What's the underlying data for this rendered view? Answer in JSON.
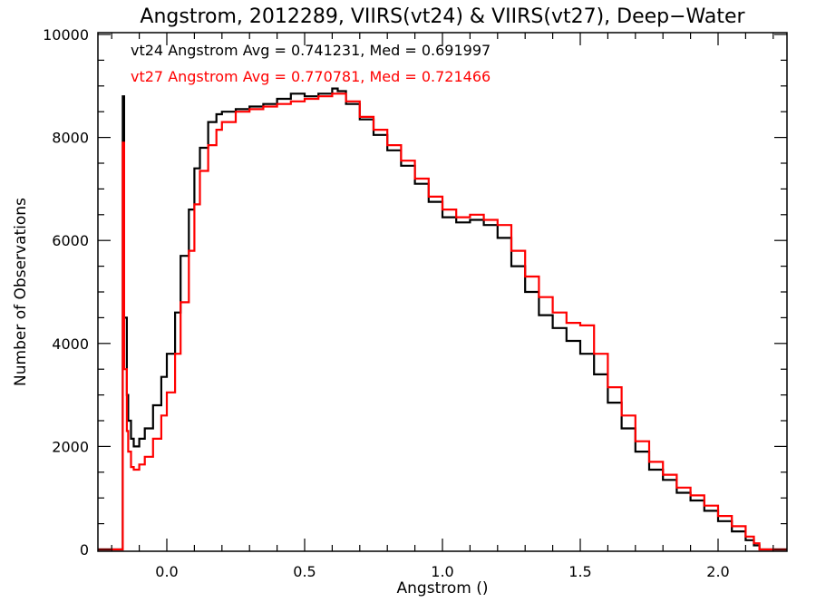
{
  "chart_data": {
    "type": "line",
    "title": "Angstrom, 2012289, VIIRS(vt24) & VIIRS(vt27), Deep−Water",
    "xlabel": "Angstrom ()",
    "ylabel": "Number of Observations",
    "xlim": [
      -0.25,
      2.25
    ],
    "ylim": [
      0,
      10000
    ],
    "xticks": [
      0.0,
      0.5,
      1.0,
      1.5,
      2.0
    ],
    "xtick_labels": [
      "0.0",
      "0.5",
      "1.0",
      "1.5",
      "2.0"
    ],
    "yticks": [
      0,
      2000,
      4000,
      6000,
      8000,
      10000
    ],
    "ytick_labels": [
      "0",
      "2000",
      "4000",
      "6000",
      "8000",
      "10000"
    ],
    "grid": false,
    "annotations": [
      {
        "text": "vt24 Angstrom Avg = 0.741231, Med = 0.691997",
        "color": "#000000"
      },
      {
        "text": "vt27 Angstrom Avg = 0.770781, Med = 0.721466",
        "color": "#ff0000"
      }
    ],
    "series": [
      {
        "color": "#000000",
        "style": "step",
        "x": [
          -0.25,
          -0.16,
          -0.155,
          -0.145,
          -0.14,
          -0.13,
          -0.12,
          -0.1,
          -0.08,
          -0.05,
          -0.02,
          0.0,
          0.03,
          0.05,
          0.08,
          0.1,
          0.12,
          0.15,
          0.18,
          0.2,
          0.25,
          0.3,
          0.35,
          0.4,
          0.45,
          0.5,
          0.55,
          0.6,
          0.62,
          0.65,
          0.7,
          0.75,
          0.8,
          0.85,
          0.9,
          0.95,
          1.0,
          1.05,
          1.1,
          1.15,
          1.2,
          1.25,
          1.3,
          1.35,
          1.4,
          1.45,
          1.5,
          1.55,
          1.6,
          1.65,
          1.7,
          1.75,
          1.8,
          1.85,
          1.9,
          1.95,
          2.0,
          2.05,
          2.1,
          2.13,
          2.15,
          2.25
        ],
        "y": [
          0,
          8800,
          4500,
          3000,
          2500,
          2150,
          2000,
          2150,
          2350,
          2800,
          3350,
          3800,
          4600,
          5700,
          6600,
          7400,
          7800,
          8300,
          8450,
          8500,
          8550,
          8600,
          8650,
          8750,
          8850,
          8800,
          8850,
          8950,
          8900,
          8650,
          8350,
          8050,
          7750,
          7450,
          7100,
          6750,
          6450,
          6350,
          6400,
          6300,
          6050,
          5500,
          5000,
          4550,
          4300,
          4050,
          3800,
          3400,
          2850,
          2350,
          1900,
          1550,
          1350,
          1100,
          950,
          750,
          550,
          350,
          180,
          80,
          0,
          0
        ]
      },
      {
        "color": "#ff0000",
        "style": "step",
        "x": [
          -0.25,
          -0.16,
          -0.155,
          -0.145,
          -0.14,
          -0.13,
          -0.12,
          -0.1,
          -0.08,
          -0.05,
          -0.02,
          0.0,
          0.03,
          0.05,
          0.08,
          0.1,
          0.12,
          0.15,
          0.18,
          0.2,
          0.25,
          0.3,
          0.35,
          0.4,
          0.45,
          0.5,
          0.55,
          0.6,
          0.62,
          0.65,
          0.7,
          0.75,
          0.8,
          0.85,
          0.9,
          0.95,
          1.0,
          1.05,
          1.1,
          1.15,
          1.2,
          1.25,
          1.3,
          1.35,
          1.4,
          1.45,
          1.5,
          1.55,
          1.6,
          1.65,
          1.7,
          1.75,
          1.8,
          1.85,
          1.9,
          1.95,
          2.0,
          2.05,
          2.1,
          2.13,
          2.15,
          2.25
        ],
        "y": [
          0,
          7900,
          3500,
          2300,
          1900,
          1600,
          1550,
          1650,
          1800,
          2150,
          2600,
          3050,
          3800,
          4800,
          5800,
          6700,
          7350,
          7850,
          8150,
          8300,
          8500,
          8550,
          8600,
          8650,
          8700,
          8750,
          8800,
          8850,
          8850,
          8700,
          8400,
          8150,
          7850,
          7550,
          7200,
          6850,
          6600,
          6450,
          6500,
          6400,
          6300,
          5800,
          5300,
          4900,
          4600,
          4400,
          4350,
          3800,
          3150,
          2600,
          2100,
          1700,
          1450,
          1200,
          1050,
          850,
          650,
          450,
          250,
          120,
          0,
          0
        ]
      }
    ]
  }
}
